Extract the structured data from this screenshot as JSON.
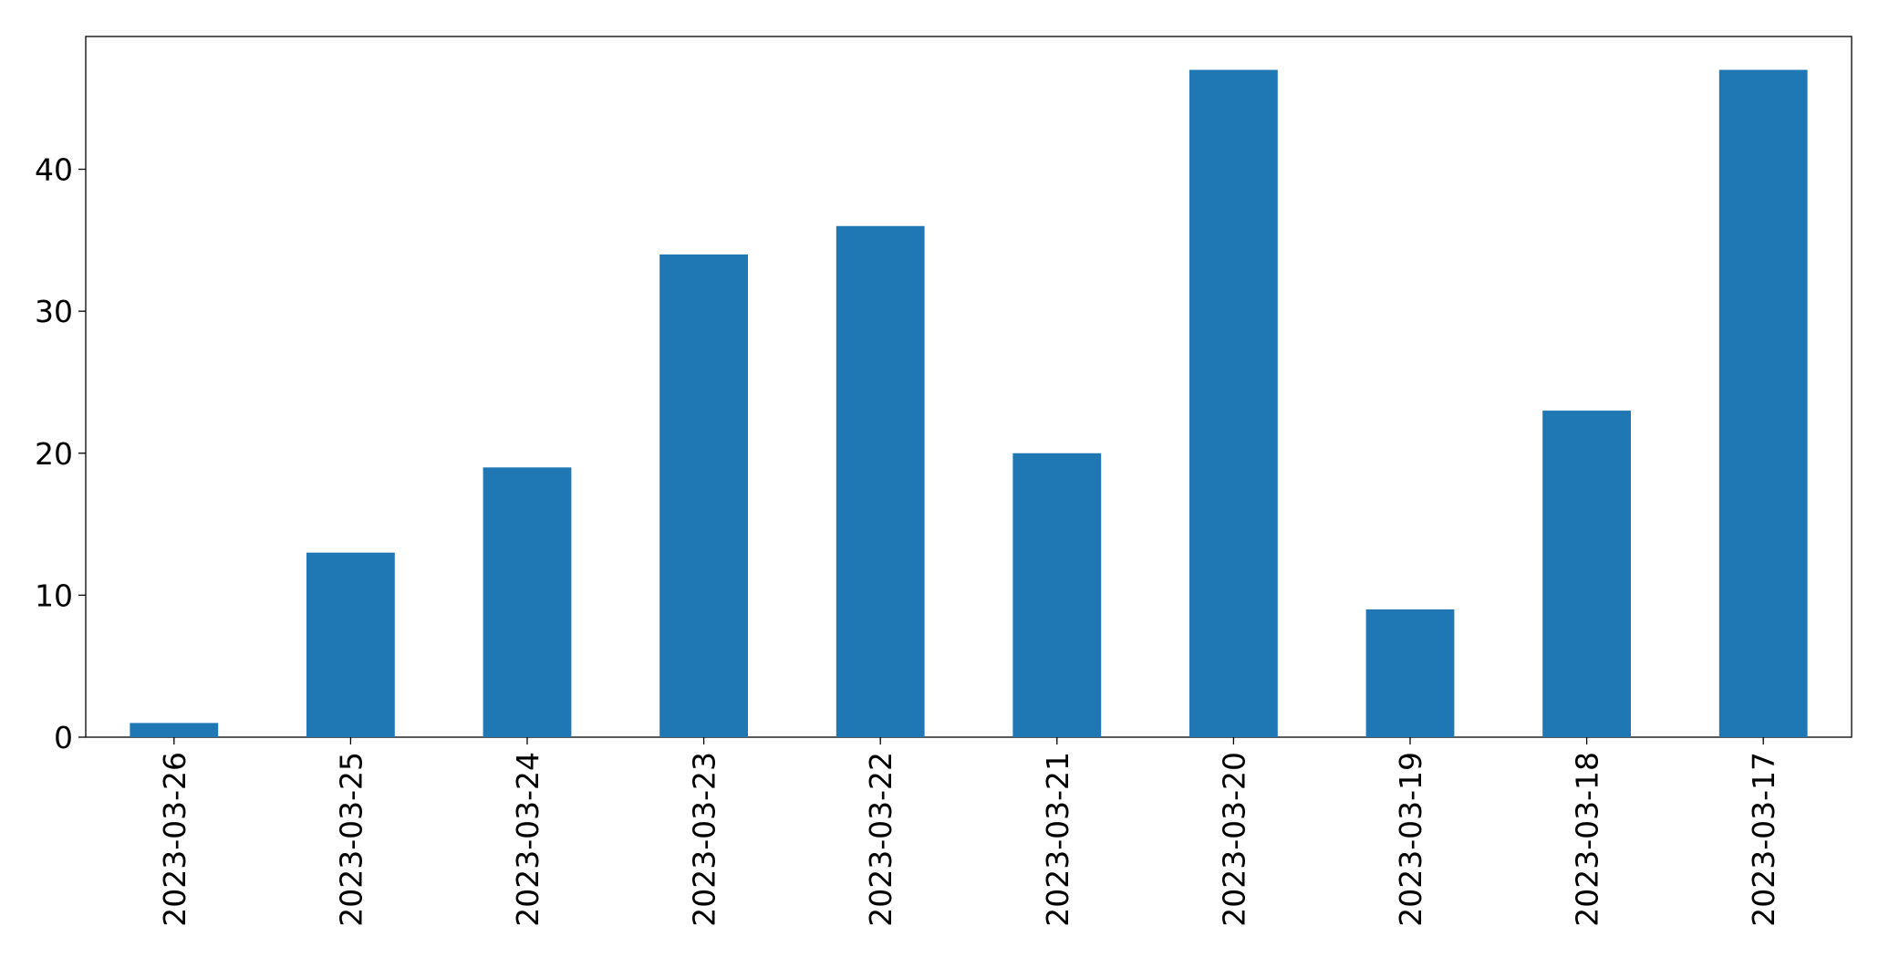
{
  "chart_data": {
    "type": "bar",
    "categories": [
      "2023-03-26",
      "2023-03-25",
      "2023-03-24",
      "2023-03-23",
      "2023-03-22",
      "2023-03-21",
      "2023-03-20",
      "2023-03-19",
      "2023-03-18",
      "2023-03-17"
    ],
    "values": [
      1,
      13,
      19,
      34,
      36,
      20,
      47,
      9,
      23,
      47
    ],
    "color": "#1f77b4",
    "ylim": [
      0,
      49.35
    ],
    "yticks": [
      0,
      10,
      20,
      30,
      40
    ],
    "grid": false
  }
}
